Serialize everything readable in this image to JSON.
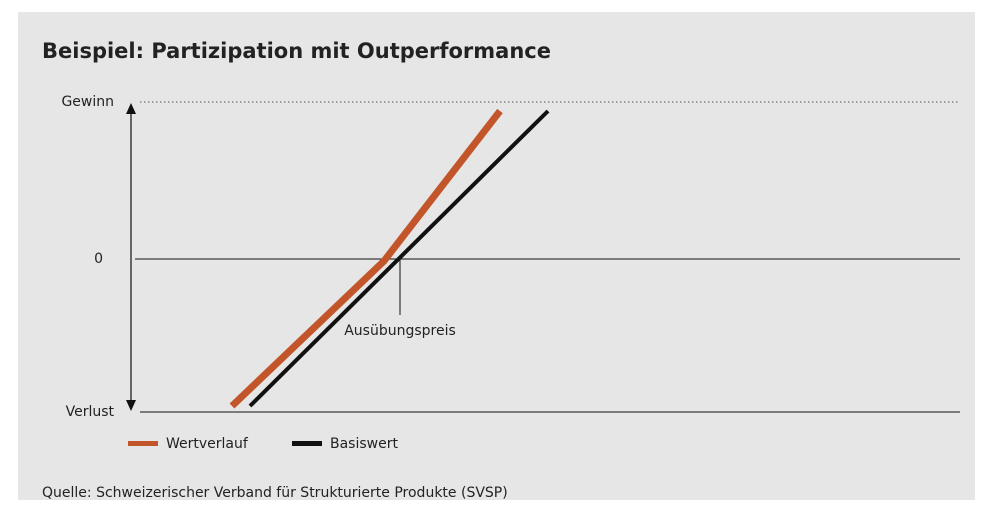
{
  "title": "Beispiel: Partizipation mit Outperformance",
  "axis_labels": {
    "top": "Gewinn",
    "middle": "0",
    "bottom": "Verlust"
  },
  "annotation": "Ausübungspreis",
  "legend": [
    {
      "name": "Wertverlauf"
    },
    {
      "name": "Basiswert"
    }
  ],
  "source": "Quelle: Schweizerischer Verband für Strukturierte Produkte (SVSP)"
}
